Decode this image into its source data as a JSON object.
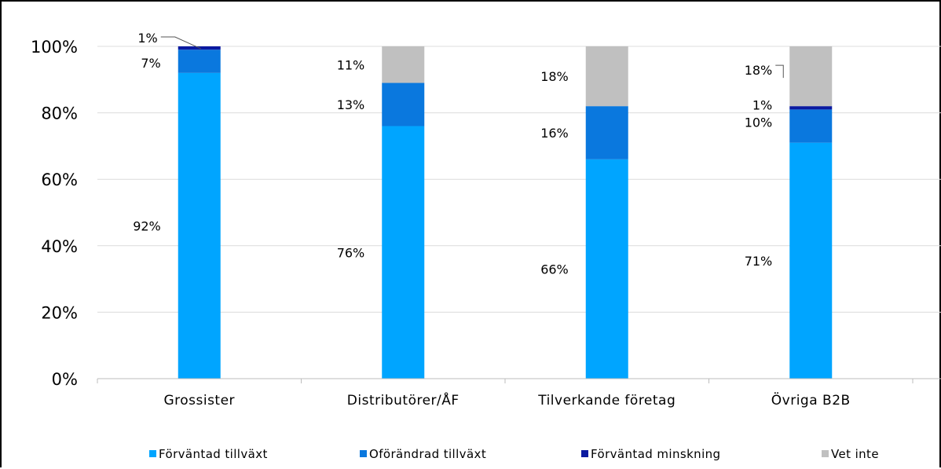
{
  "chart_data": {
    "type": "bar",
    "stacked": true,
    "categories": [
      "Grossister",
      "Distributörer/ÅF",
      "Tilverkande företag",
      "Övriga B2B"
    ],
    "series": [
      {
        "name": "Förväntad tillväxt",
        "values": [
          92,
          76,
          66,
          71
        ],
        "labels": [
          "92%",
          "76%",
          "66%",
          "71%"
        ],
        "color": "#00a5ff"
      },
      {
        "name": "Oförändrad tillväxt",
        "values": [
          7,
          13,
          16,
          10
        ],
        "labels": [
          "7%",
          "13%",
          "16%",
          "10%"
        ],
        "color": "#0a78de"
      },
      {
        "name": "Förväntad minskning",
        "values": [
          1,
          0,
          0,
          1
        ],
        "labels": [
          "1%",
          "",
          "",
          "1%"
        ],
        "color": "#0b1aa0"
      },
      {
        "name": "Vet inte",
        "values": [
          0,
          11,
          18,
          18
        ],
        "labels": [
          "",
          "11%",
          "18%",
          "18%"
        ],
        "color": "#c0c0c0"
      }
    ],
    "y_ticks": [
      "0%",
      "20%",
      "40%",
      "60%",
      "80%",
      "100%"
    ],
    "ylim": [
      0,
      100
    ],
    "grid": true,
    "legend": "bottom",
    "title": "",
    "xlabel": "",
    "ylabel": ""
  }
}
